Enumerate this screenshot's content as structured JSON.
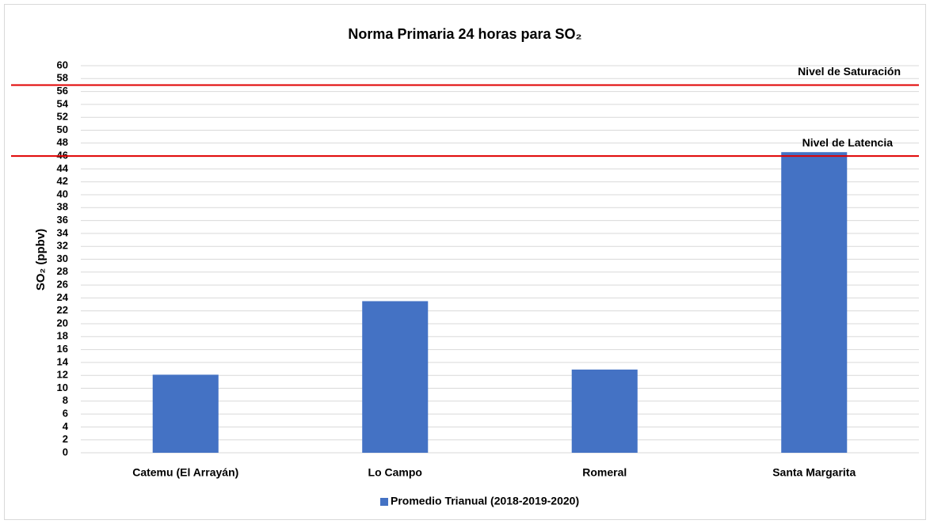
{
  "chart_data": {
    "type": "bar",
    "title": "Norma Primaria 24 horas para SO₂",
    "y_label": "SO₂ (ppbv)",
    "categories": [
      "Catemu (El Arrayán)",
      "Lo Campo",
      "Romeral",
      "Santa Margarita"
    ],
    "series": [
      {
        "name": "Promedio Trianual (2018-2019-2020)",
        "color": "#4472c4",
        "values": [
          12.1,
          23.5,
          12.9,
          46.6
        ]
      }
    ],
    "ylim": [
      0,
      60
    ],
    "yticks": [
      0,
      2,
      4,
      6,
      8,
      10,
      12,
      14,
      16,
      18,
      20,
      22,
      24,
      26,
      28,
      30,
      32,
      34,
      36,
      38,
      40,
      42,
      44,
      46,
      48,
      50,
      52,
      54,
      56,
      58,
      60
    ],
    "grid": true,
    "reference_lines": [
      {
        "label": "Nivel de Saturación",
        "value": 57,
        "color": "#e00000"
      },
      {
        "label": "Nivel de Latencia",
        "value": 46,
        "color": "#e00000"
      }
    ],
    "legend": "bottom"
  }
}
